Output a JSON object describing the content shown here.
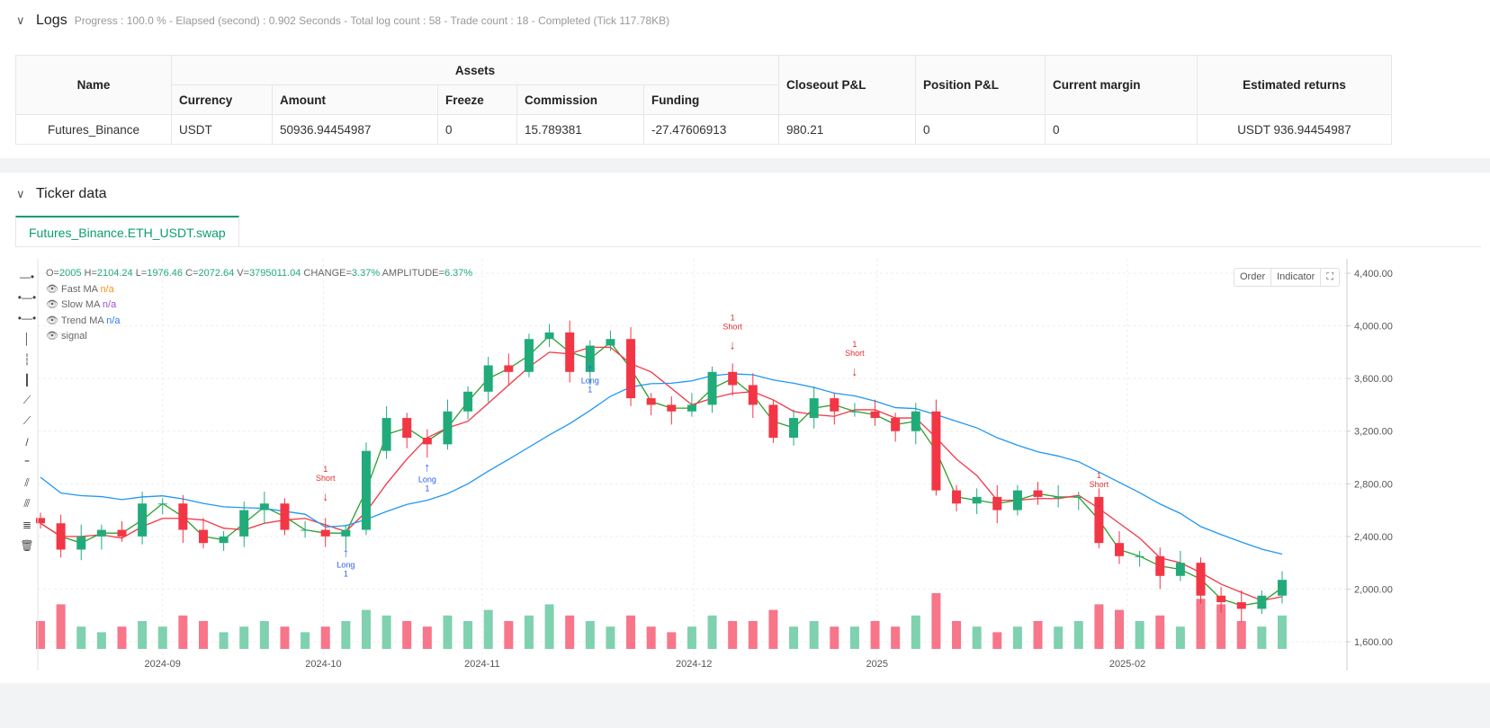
{
  "logs": {
    "title": "Logs",
    "summary": "Progress : 100.0 % - Elapsed (second) : 0.902  Seconds - Total log count : 58 - Trade count : 18 - Completed (Tick 117.78KB)"
  },
  "table": {
    "headers": {
      "name": "Name",
      "assets": "Assets",
      "closeout": "Closeout P&L",
      "position": "Position P&L",
      "margin": "Current margin",
      "returns": "Estimated returns"
    },
    "sub_headers": [
      "Currency",
      "Amount",
      "Freeze",
      "Commission",
      "Funding"
    ],
    "row": {
      "name": "Futures_Binance",
      "currency": "USDT",
      "amount": "50936.94454987",
      "freeze": "0",
      "commission": "15.789381",
      "funding": "-27.47606913",
      "closeout": "980.21",
      "position": "0",
      "margin": "0",
      "returns": "USDT 936.94454987"
    }
  },
  "ticker": {
    "title": "Ticker data",
    "tab": "Futures_Binance.ETH_USDT.swap"
  },
  "legend": {
    "ohlc_labels": [
      "O=",
      "H=",
      "L=",
      "C=",
      "V=",
      "CHANGE=",
      "AMPLITUDE="
    ],
    "ohlc_values": [
      "2005",
      "2104.24",
      "1976.46",
      "2072.64",
      "3795011.04",
      "3.37%",
      "6.37%"
    ],
    "series": [
      {
        "name": "Fast MA",
        "value": "n/a",
        "color": "#f7931a"
      },
      {
        "name": "Slow MA",
        "value": "n/a",
        "color": "#9c4fd6"
      },
      {
        "name": "Trend MA",
        "value": "n/a",
        "color": "#2f7bf5"
      },
      {
        "name": "signal",
        "value": ""
      }
    ]
  },
  "chart_buttons": {
    "order": "Order",
    "indicator": "Indicator"
  },
  "chart_data": {
    "type": "candlestick",
    "ylim": [
      1600,
      4400
    ],
    "y_ticks": [
      "1,600.00",
      "2,000.00",
      "2,400.00",
      "2,800.00",
      "3,200.00",
      "3,600.00",
      "4,000.00",
      "4,400.00"
    ],
    "y_tick_values": [
      1600,
      2000,
      2400,
      2800,
      3200,
      3600,
      4000,
      4400
    ],
    "x_ticks": [
      {
        "label": "2024-09",
        "index": 6
      },
      {
        "label": "2024-10",
        "index": 13.9
      },
      {
        "label": "2024-11",
        "index": 21.7
      },
      {
        "label": "2024-12",
        "index": 32.1
      },
      {
        "label": "2025",
        "index": 41.1
      },
      {
        "label": "2025-02",
        "index": 53.4
      }
    ],
    "closes": [
      2500,
      2300,
      2400,
      2450,
      2400,
      2650,
      2650,
      2450,
      2350,
      2400,
      2600,
      2650,
      2450,
      2450,
      2400,
      2450,
      3050,
      3300,
      3150,
      3100,
      3350,
      3500,
      3700,
      3650,
      3900,
      3950,
      3650,
      3850,
      3900,
      3450,
      3400,
      3350,
      3400,
      3650,
      3550,
      3400,
      3150,
      3300,
      3450,
      3350,
      3350,
      3300,
      3200,
      3350,
      2750,
      2650,
      2700,
      2600,
      2750,
      2700,
      2700,
      2700,
      2350,
      2250,
      2250,
      2100,
      2200,
      1950,
      1900,
      1850,
      1950,
      2070
    ],
    "volumes": [
      5,
      8,
      4,
      3,
      4,
      5,
      4,
      6,
      5,
      3,
      4,
      5,
      4,
      3,
      4,
      5,
      7,
      6,
      5,
      4,
      6,
      5,
      7,
      5,
      6,
      8,
      6,
      5,
      4,
      6,
      4,
      3,
      4,
      6,
      5,
      5,
      7,
      4,
      5,
      4,
      4,
      5,
      4,
      6,
      10,
      5,
      4,
      3,
      4,
      5,
      4,
      5,
      8,
      7,
      5,
      6,
      4,
      9,
      8,
      5,
      4,
      6
    ],
    "signals": [
      {
        "index": 14,
        "type": "Short",
        "count": "1"
      },
      {
        "index": 15,
        "type": "Long",
        "count": "1"
      },
      {
        "index": 19,
        "type": "Long",
        "count": "1"
      },
      {
        "index": 27,
        "type": "Long",
        "count": "1"
      },
      {
        "index": 34,
        "type": "Short",
        "count": "1"
      },
      {
        "index": 40,
        "type": "Short",
        "count": "1"
      },
      {
        "index": 52,
        "type": "Short",
        "count": "1"
      }
    ],
    "colors": {
      "up": "#22ab7a",
      "down": "#f23645",
      "fast": "#2ca02c",
      "slow": "#f23645",
      "trend": "#2196f3",
      "long": "#2f5bf5",
      "short": "#e03030"
    }
  }
}
